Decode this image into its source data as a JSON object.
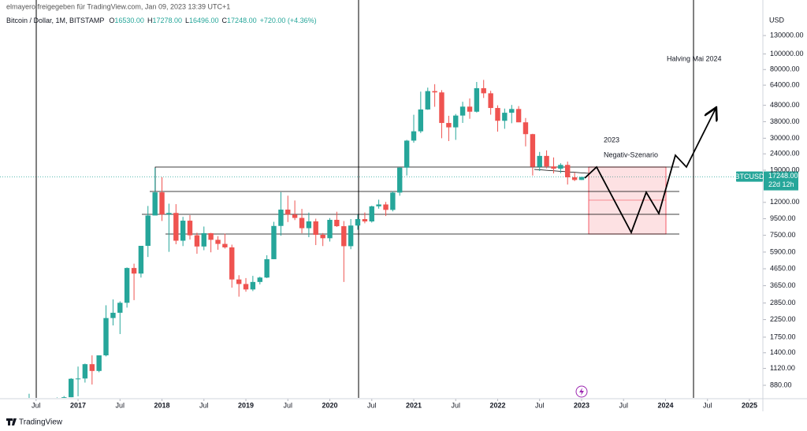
{
  "header": {
    "publisher": "elmayero freigegeben für TradingView.com, Jan 09, 2023 13:39 UTC+1",
    "symbol_line": "Bitcoin / Dollar, 1M, BITSTAMP",
    "ohlc_labels": [
      "O",
      "H",
      "L",
      "C"
    ],
    "ohlc_values": [
      "16530.00",
      "17278.00",
      "16496.00",
      "17248.00"
    ],
    "change": "+720.00 (+4.36%)"
  },
  "annotations": {
    "year": "2023",
    "scenario": "Negativ-Szenario",
    "halving": "Halving Mai 2024"
  },
  "price_tag": {
    "symbol": "BTCUSD",
    "price": "17248.00",
    "countdown": "22d 12h"
  },
  "footer": "TradingView",
  "chart_data": {
    "type": "candlestick",
    "axis_title": "USD",
    "log_y": true,
    "up_color": "#26a69a",
    "down_color": "#ef5350",
    "xlim": [
      2016.07,
      2025.16
    ],
    "ylim": [
      735,
      216000
    ],
    "xticks": [
      {
        "value": 2016.5,
        "label": "Jul"
      },
      2017,
      {
        "value": 2017.5,
        "label": "Jul"
      },
      2018,
      {
        "value": 2018.5,
        "label": "Jul"
      },
      2019,
      {
        "value": 2019.5,
        "label": "Jul"
      },
      2020,
      {
        "value": 2020.5,
        "label": "Jul"
      },
      2021,
      {
        "value": 2021.5,
        "label": "Jul"
      },
      2022,
      {
        "value": 2022.5,
        "label": "Jul"
      },
      2023,
      {
        "value": 2023.5,
        "label": "Jul"
      },
      2024,
      {
        "value": 2024.5,
        "label": "Jul"
      },
      2025
    ],
    "yticks": [
      {
        "value": 130000,
        "label": "130000.00"
      },
      {
        "value": 100000,
        "label": "100000.00"
      },
      {
        "value": 80000,
        "label": "80000.00"
      },
      {
        "value": 64000,
        "label": "64000.00"
      },
      {
        "value": 48000,
        "label": "48000.00"
      },
      {
        "value": 38000,
        "label": "38000.00"
      },
      {
        "value": 30000,
        "label": "30000.00"
      },
      {
        "value": 24000,
        "label": "24000.00"
      },
      {
        "value": 19000,
        "label": "19000.00"
      },
      {
        "value": 12000,
        "label": "12000.00"
      },
      {
        "value": 9500,
        "label": "9500.00"
      },
      {
        "value": 7500,
        "label": "7500.00"
      },
      {
        "value": 5900,
        "label": "5900.00"
      },
      {
        "value": 4650,
        "label": "4650.00"
      },
      {
        "value": 3650,
        "label": "3650.00"
      },
      {
        "value": 2850,
        "label": "2850.00"
      },
      {
        "value": 2250,
        "label": "2250.00"
      },
      {
        "value": 1750,
        "label": "1750.00"
      },
      {
        "value": 1400,
        "label": "1400.00"
      },
      {
        "value": 1120,
        "label": "1120.00"
      },
      {
        "value": 880,
        "label": "880.00"
      }
    ],
    "x": [
      2016.417,
      2016.5,
      2016.583,
      2016.667,
      2016.75,
      2016.833,
      2016.917,
      2017,
      2017.083,
      2017.167,
      2017.25,
      2017.333,
      2017.417,
      2017.5,
      2017.583,
      2017.667,
      2017.75,
      2017.833,
      2017.917,
      2018,
      2018.083,
      2018.167,
      2018.25,
      2018.333,
      2018.417,
      2018.5,
      2018.583,
      2018.667,
      2018.75,
      2018.833,
      2018.917,
      2019,
      2019.083,
      2019.167,
      2019.25,
      2019.333,
      2019.417,
      2019.5,
      2019.583,
      2019.667,
      2019.75,
      2019.833,
      2019.917,
      2020,
      2020.083,
      2020.167,
      2020.25,
      2020.333,
      2020.417,
      2020.5,
      2020.583,
      2020.667,
      2020.75,
      2020.833,
      2020.917,
      2021,
      2021.083,
      2021.167,
      2021.25,
      2021.333,
      2021.417,
      2021.5,
      2021.583,
      2021.667,
      2021.75,
      2021.833,
      2021.917,
      2022,
      2022.083,
      2022.167,
      2022.25,
      2022.333,
      2022.417,
      2022.5,
      2022.583,
      2022.667,
      2022.75,
      2022.833,
      2022.917,
      2023
    ],
    "open": [
      531,
      673,
      624,
      575,
      609,
      698,
      742,
      966,
      970,
      1190,
      1080,
      1350,
      2300,
      2480,
      2860,
      4700,
      4340,
      6450,
      9950,
      13850,
      10100,
      10320,
      6940,
      9240,
      7500,
      6390,
      7730,
      7030,
      6630,
      6310,
      3990,
      3740,
      3460,
      3850,
      4100,
      5330,
      8570,
      10820,
      10090,
      9610,
      8300,
      9150,
      7550,
      7190,
      9350,
      8540,
      6420,
      8620,
      9450,
      9140,
      11340,
      11650,
      10780,
      13800,
      19700,
      28990,
      33110,
      45240,
      58800,
      57720,
      37300,
      35040,
      41460,
      47100,
      43820,
      61300,
      57000,
      46200,
      38480,
      43160,
      45540,
      37650,
      31800,
      19940,
      23300,
      20050,
      19420,
      20490,
      17160,
      16530
    ],
    "high": [
      780,
      704,
      626,
      615,
      740,
      755,
      975,
      1150,
      1200,
      1350,
      1350,
      2760,
      3000,
      2920,
      4740,
      5000,
      6450,
      11400,
      19670,
      17200,
      11780,
      11700,
      9760,
      10000,
      7780,
      8500,
      7760,
      7410,
      7680,
      6560,
      4240,
      4070,
      4200,
      4150,
      5640,
      9090,
      13880,
      13200,
      12330,
      10930,
      10370,
      9510,
      7740,
      9590,
      10500,
      9190,
      9460,
      10070,
      10390,
      11440,
      12470,
      12080,
      14100,
      19890,
      29300,
      41950,
      58370,
      61780,
      64900,
      59600,
      41330,
      42400,
      50500,
      52950,
      67000,
      69000,
      59050,
      47990,
      45820,
      48240,
      47450,
      40050,
      31960,
      24670,
      25210,
      22800,
      20990,
      21480,
      18390,
      17278
    ],
    "low": [
      515,
      605,
      470,
      570,
      605,
      690,
      742,
      752,
      915,
      890,
      1060,
      1330,
      2070,
      1830,
      2670,
      2970,
      4100,
      5500,
      10400,
      9200,
      5920,
      6600,
      6430,
      7060,
      5760,
      6060,
      5880,
      6100,
      6200,
      3550,
      3120,
      3350,
      3380,
      3720,
      4070,
      5330,
      7460,
      9060,
      9320,
      7720,
      7300,
      6520,
      6430,
      6860,
      8450,
      3850,
      6150,
      8120,
      8900,
      8990,
      10970,
      9880,
      10550,
      13200,
      17600,
      28130,
      32300,
      45000,
      47000,
      30000,
      28800,
      29300,
      37330,
      39600,
      43300,
      53300,
      42000,
      32950,
      34320,
      37160,
      37700,
      26700,
      17600,
      18780,
      19520,
      18150,
      18200,
      15480,
      16260,
      16496
    ],
    "close": [
      673,
      624,
      575,
      609,
      698,
      742,
      966,
      970,
      1190,
      1080,
      1350,
      2300,
      2480,
      2860,
      4700,
      4340,
      6450,
      9950,
      13850,
      10100,
      10320,
      6940,
      9240,
      7500,
      6390,
      7730,
      7030,
      6630,
      6310,
      3990,
      3740,
      3460,
      3850,
      4100,
      5330,
      8570,
      10820,
      10090,
      9610,
      8300,
      9150,
      7550,
      7190,
      9350,
      8540,
      6420,
      8620,
      9450,
      9140,
      11340,
      11650,
      10780,
      13800,
      19700,
      28990,
      33110,
      45240,
      58800,
      57720,
      37300,
      35040,
      41460,
      47100,
      43820,
      61300,
      57000,
      46200,
      38480,
      43160,
      45540,
      37650,
      31800,
      19940,
      23300,
      20050,
      19420,
      20490,
      17160,
      16530,
      17248
    ]
  }
}
